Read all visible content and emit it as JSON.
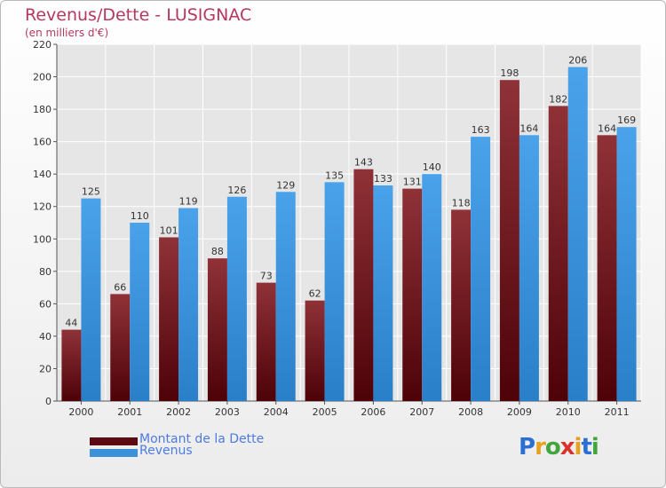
{
  "header": {
    "title": "Revenus/Dette - LUSIGNAC",
    "subtitle": "(en milliers d'€)"
  },
  "colors": {
    "debt": "#7d2128",
    "revenue": "#3b92da",
    "title": "#b5385e",
    "legend_text": "#4d7be0"
  },
  "chart_data": {
    "type": "bar",
    "title": "Revenus/Dette - LUSIGNAC",
    "subtitle": "(en milliers d'€)",
    "categories": [
      "2000",
      "2001",
      "2002",
      "2003",
      "2004",
      "2005",
      "2006",
      "2007",
      "2008",
      "2009",
      "2010",
      "2011"
    ],
    "series": [
      {
        "name": "Montant de la Dette",
        "values": [
          44,
          66,
          101,
          88,
          73,
          62,
          143,
          131,
          118,
          198,
          182,
          164
        ]
      },
      {
        "name": "Revenus",
        "values": [
          125,
          110,
          119,
          126,
          129,
          135,
          133,
          140,
          163,
          164,
          206,
          169
        ]
      }
    ],
    "ylim": [
      0,
      220
    ],
    "yticks": [
      0,
      20,
      40,
      60,
      80,
      100,
      120,
      140,
      160,
      180,
      200,
      220
    ],
    "grid": true,
    "legend": "bottom-left"
  },
  "legend": {
    "items": [
      "Montant de la Dette",
      "Revenus"
    ]
  },
  "logo": {
    "letters": [
      "P",
      "r",
      "o",
      "x",
      "i",
      "t",
      "i"
    ],
    "colors": [
      "#2b6fd4",
      "#e8a020",
      "#41a63c",
      "#d9342b",
      "#e8a020",
      "#2b6fd4",
      "#41a63c"
    ]
  }
}
